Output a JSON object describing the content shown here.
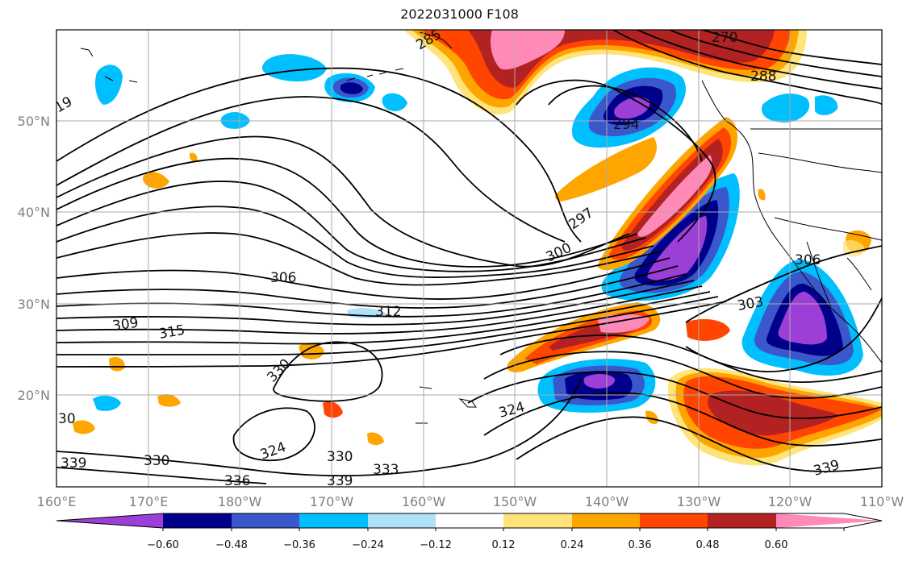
{
  "title": "2022031000 F108",
  "map": {
    "lat_labels": [
      "50°N",
      "40°N",
      "30°N",
      "20°N"
    ],
    "lon_labels": [
      "160°E",
      "170°E",
      "180°W",
      "170°W",
      "160°W",
      "150°W",
      "140°W",
      "130°W",
      "120°W",
      "110°W"
    ],
    "contour_labels": [
      "306",
      "309",
      "315",
      "312",
      "300",
      "297",
      "294",
      "303",
      "306",
      "330",
      "324",
      "330",
      "330",
      "333",
      "339",
      "336",
      "339",
      "324",
      "270",
      "288",
      "285",
      "19",
      "30",
      "339"
    ]
  },
  "colorbar": {
    "tick_labels": [
      "−0.60",
      "−0.48",
      "−0.36",
      "−0.24",
      "−0.12",
      "0.12",
      "0.24",
      "0.36",
      "0.48",
      "0.60"
    ],
    "colors": [
      "#9b3fd6",
      "#00008b",
      "#3b57cc",
      "#00bfff",
      "#b0e0fa",
      "#ffffff",
      "#ffe47a",
      "#ffa500",
      "#ff4500",
      "#b22222",
      "#ff8ab8"
    ]
  }
}
